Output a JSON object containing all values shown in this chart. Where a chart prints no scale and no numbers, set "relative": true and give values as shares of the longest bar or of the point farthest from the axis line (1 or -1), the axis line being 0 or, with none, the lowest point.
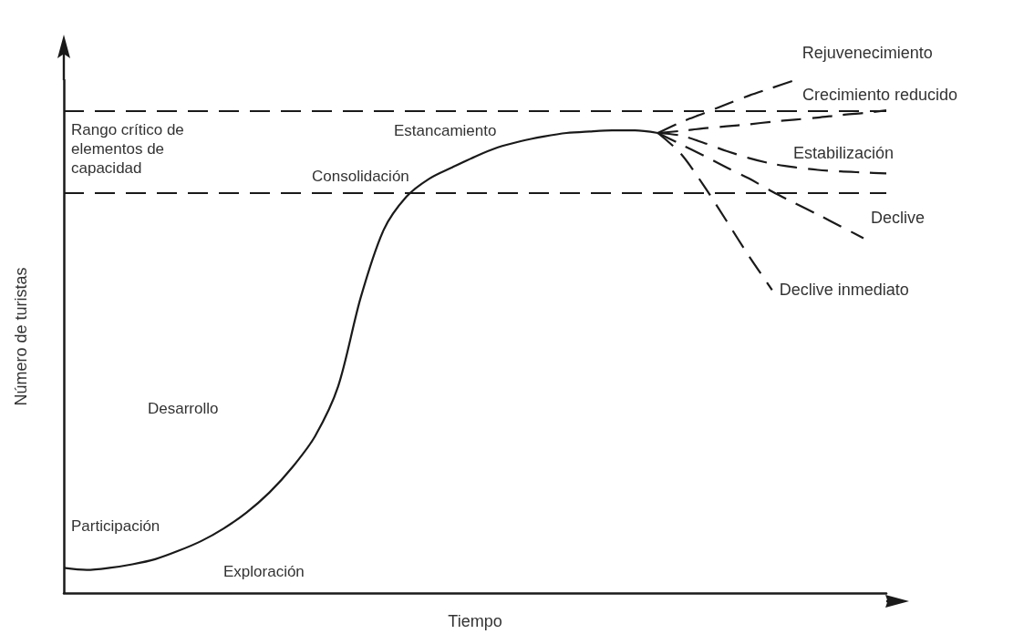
{
  "chart_data": {
    "type": "line",
    "relative": true,
    "xlabel": "Tiempo",
    "ylabel": "Número de turistas",
    "categories": [
      null,
      null,
      null,
      null,
      null,
      null,
      null,
      null,
      null,
      null,
      null,
      null,
      null,
      null,
      null,
      null,
      null,
      null,
      null,
      null,
      null,
      null,
      null,
      null,
      null,
      null,
      null,
      null,
      null,
      null,
      null,
      null,
      null,
      null,
      null,
      null,
      null
    ],
    "series": [
      {
        "color": "#1a1a1a",
        "line_style": "solid",
        "values": [
          0.049,
          0.045,
          0.049,
          0.056,
          0.066,
          0.082,
          0.101,
          0.126,
          0.157,
          0.196,
          0.245,
          0.306,
          0.402,
          0.577,
          0.708,
          0.773,
          0.808,
          0.83,
          0.851,
          0.869,
          0.881,
          0.89,
          0.897,
          0.9,
          0.902,
          0.902,
          0.897,
          null,
          null,
          null,
          null,
          null,
          null,
          null,
          null,
          null,
          null
        ]
      },
      {
        "name": "Rejuvenecimiento",
        "color": "#1a1a1a",
        "line_style": "dashed",
        "values": [
          null,
          null,
          null,
          null,
          null,
          null,
          null,
          null,
          null,
          null,
          null,
          null,
          null,
          null,
          null,
          null,
          null,
          null,
          null,
          null,
          null,
          null,
          null,
          null,
          null,
          null,
          0.897,
          0.918,
          0.935,
          0.953,
          0.97,
          0.985,
          1,
          null,
          null,
          null,
          null
        ]
      },
      {
        "name": "Crecimiento reducido",
        "color": "#1a1a1a",
        "line_style": "dashed",
        "values": [
          null,
          null,
          null,
          null,
          null,
          null,
          null,
          null,
          null,
          null,
          null,
          null,
          null,
          null,
          null,
          null,
          null,
          null,
          null,
          null,
          null,
          null,
          null,
          null,
          null,
          null,
          0.897,
          0.901,
          0.906,
          0.91,
          0.914,
          0.919,
          0.923,
          0.927,
          0.932,
          0.936,
          0.941
        ]
      },
      {
        "name": "Estabilización",
        "color": "#1a1a1a",
        "line_style": "dashed",
        "values": [
          null,
          null,
          null,
          null,
          null,
          null,
          null,
          null,
          null,
          null,
          null,
          null,
          null,
          null,
          null,
          null,
          null,
          null,
          null,
          null,
          null,
          null,
          null,
          null,
          null,
          null,
          0.897,
          0.892,
          0.878,
          0.862,
          0.848,
          0.837,
          0.83,
          0.825,
          0.822,
          0.82,
          0.818
        ]
      },
      {
        "name": "Declive",
        "color": "#1a1a1a",
        "line_style": "dashed",
        "values": [
          null,
          null,
          null,
          null,
          null,
          null,
          null,
          null,
          null,
          null,
          null,
          null,
          null,
          null,
          null,
          null,
          null,
          null,
          null,
          null,
          null,
          null,
          null,
          null,
          null,
          null,
          0.897,
          0.875,
          0.853,
          0.83,
          0.808,
          0.783,
          0.76,
          0.738,
          0.715,
          0.692,
          null
        ]
      },
      {
        "name": "Declive inmediato",
        "color": "#1a1a1a",
        "line_style": "dashed",
        "values": [
          null,
          null,
          null,
          null,
          null,
          null,
          null,
          null,
          null,
          null,
          null,
          null,
          null,
          null,
          null,
          null,
          null,
          null,
          null,
          null,
          null,
          null,
          null,
          null,
          null,
          null,
          0.897,
          0.857,
          0.795,
          0.726,
          0.656,
          0.591,
          null,
          null,
          null,
          null,
          null
        ]
      }
    ],
    "ref_lines": [
      {
        "axis": "y",
        "value": 0.939,
        "color": "#1a1a1a",
        "line_style": "dashed"
      },
      {
        "axis": "y",
        "value": 0.783,
        "color": "#1a1a1a",
        "line_style": "dashed"
      }
    ],
    "annotations": [
      "Rango crítico de\nelementos de\ncapacidad",
      "Estancamiento",
      "Consolidación",
      "Desarrollo",
      "Participación",
      "Exploración"
    ],
    "grid": false,
    "legend": false,
    "marker": "none"
  }
}
